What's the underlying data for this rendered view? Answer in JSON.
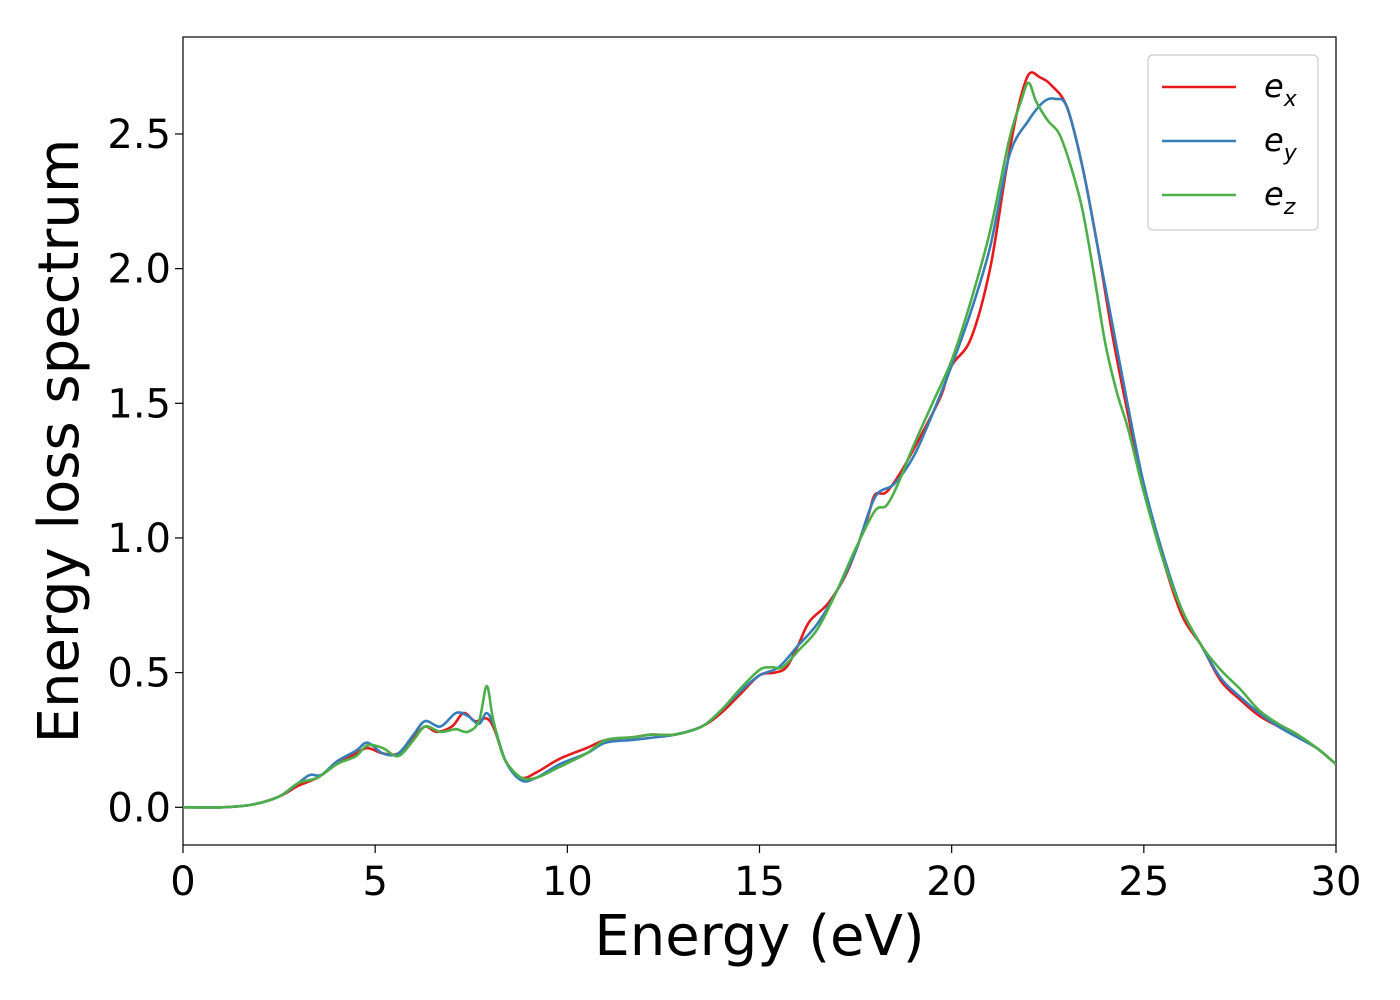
{
  "chart_data": {
    "type": "line",
    "title": "",
    "xlabel": "Energy (eV)",
    "ylabel": "Energy loss spectrum",
    "xlim": [
      0,
      30
    ],
    "ylim": [
      -0.14,
      2.86
    ],
    "xticks": [
      0,
      5,
      10,
      15,
      20,
      25,
      30
    ],
    "xtick_labels": [
      "0",
      "5",
      "10",
      "15",
      "20",
      "25",
      "30"
    ],
    "yticks": [
      0.0,
      0.5,
      1.0,
      1.5,
      2.0,
      2.5
    ],
    "ytick_labels": [
      "0.0",
      "0.5",
      "1.0",
      "1.5",
      "2.0",
      "2.5"
    ],
    "grid": false,
    "legend_position": "top-right",
    "series": [
      {
        "name": "e_x",
        "label_base": "e",
        "label_sub": "x",
        "color": "#e41a1c",
        "x": [
          0,
          1,
          1.8,
          2.5,
          3.0,
          3.5,
          4.0,
          4.5,
          4.8,
          5.2,
          5.6,
          6.0,
          6.3,
          6.6,
          7.0,
          7.3,
          7.6,
          7.9,
          8.1,
          8.4,
          8.8,
          9.2,
          9.8,
          10.5,
          11.0,
          11.7,
          12.2,
          12.8,
          13.5,
          14.0,
          14.5,
          15.0,
          15.4,
          15.7,
          16.0,
          16.3,
          16.8,
          17.3,
          17.8,
          18.0,
          18.3,
          18.7,
          19.2,
          19.7,
          20.0,
          20.5,
          21.0,
          21.4,
          21.7,
          22.0,
          22.3,
          22.6,
          23.0,
          23.4,
          23.8,
          24.2,
          24.6,
          25.0,
          25.5,
          26.0,
          26.5,
          27.0,
          27.5,
          28.0,
          28.5,
          29.0,
          29.5,
          30.0
        ],
        "values": [
          0.0,
          0.0,
          0.01,
          0.04,
          0.08,
          0.11,
          0.16,
          0.2,
          0.22,
          0.2,
          0.2,
          0.26,
          0.3,
          0.28,
          0.3,
          0.35,
          0.32,
          0.33,
          0.29,
          0.17,
          0.11,
          0.13,
          0.18,
          0.22,
          0.25,
          0.26,
          0.27,
          0.27,
          0.3,
          0.35,
          0.42,
          0.49,
          0.5,
          0.52,
          0.6,
          0.69,
          0.76,
          0.88,
          1.07,
          1.16,
          1.17,
          1.25,
          1.38,
          1.52,
          1.64,
          1.74,
          2.0,
          2.35,
          2.58,
          2.72,
          2.71,
          2.68,
          2.6,
          2.38,
          2.08,
          1.74,
          1.45,
          1.18,
          0.92,
          0.71,
          0.6,
          0.47,
          0.4,
          0.34,
          0.3,
          0.26,
          0.22,
          0.16
        ]
      },
      {
        "name": "e_y",
        "label_base": "e",
        "label_sub": "y",
        "color": "#377eb8",
        "x": [
          0,
          1,
          1.8,
          2.5,
          3.0,
          3.3,
          3.6,
          4.0,
          4.5,
          4.8,
          5.2,
          5.6,
          6.0,
          6.3,
          6.7,
          7.1,
          7.4,
          7.7,
          7.9,
          8.1,
          8.4,
          8.8,
          9.2,
          9.8,
          10.5,
          11.0,
          11.7,
          12.3,
          12.8,
          13.5,
          14.0,
          14.5,
          15.0,
          15.5,
          16.0,
          16.5,
          17.0,
          17.5,
          18.0,
          18.5,
          19.0,
          19.5,
          20.0,
          20.5,
          21.0,
          21.5,
          22.0,
          22.4,
          22.7,
          23.0,
          23.4,
          23.8,
          24.2,
          24.6,
          25.0,
          25.5,
          26.0,
          26.5,
          27.0,
          27.5,
          28.0,
          28.5,
          29.0,
          29.5,
          30.0
        ],
        "values": [
          0.0,
          0.0,
          0.01,
          0.04,
          0.09,
          0.12,
          0.12,
          0.17,
          0.21,
          0.24,
          0.2,
          0.2,
          0.27,
          0.32,
          0.3,
          0.35,
          0.34,
          0.31,
          0.35,
          0.3,
          0.17,
          0.1,
          0.11,
          0.16,
          0.2,
          0.24,
          0.25,
          0.26,
          0.27,
          0.3,
          0.36,
          0.43,
          0.49,
          0.52,
          0.6,
          0.68,
          0.8,
          0.95,
          1.15,
          1.2,
          1.3,
          1.46,
          1.64,
          1.84,
          2.08,
          2.42,
          2.55,
          2.62,
          2.63,
          2.6,
          2.38,
          2.08,
          1.78,
          1.48,
          1.2,
          0.94,
          0.73,
          0.6,
          0.48,
          0.41,
          0.35,
          0.3,
          0.26,
          0.22,
          0.16
        ]
      },
      {
        "name": "e_z",
        "label_base": "e",
        "label_sub": "z",
        "color": "#4daf4a",
        "x": [
          0,
          1,
          1.8,
          2.5,
          3.0,
          3.5,
          4.0,
          4.5,
          4.8,
          5.2,
          5.6,
          6.0,
          6.3,
          6.7,
          7.1,
          7.4,
          7.7,
          7.9,
          8.05,
          8.2,
          8.4,
          8.8,
          9.2,
          9.8,
          10.5,
          11.0,
          11.7,
          12.2,
          12.8,
          13.5,
          14.0,
          14.5,
          15.0,
          15.3,
          15.6,
          16.0,
          16.5,
          17.0,
          17.5,
          18.0,
          18.3,
          18.6,
          19.0,
          19.5,
          20.0,
          20.5,
          21.0,
          21.5,
          21.8,
          22.0,
          22.2,
          22.5,
          22.8,
          23.1,
          23.4,
          23.7,
          24.0,
          24.3,
          24.6,
          25.0,
          25.5,
          26.0,
          26.5,
          27.0,
          27.5,
          28.0,
          28.5,
          29.0,
          29.5,
          30.0
        ],
        "values": [
          0.0,
          0.0,
          0.01,
          0.04,
          0.09,
          0.11,
          0.16,
          0.19,
          0.23,
          0.22,
          0.19,
          0.25,
          0.3,
          0.28,
          0.29,
          0.28,
          0.32,
          0.45,
          0.34,
          0.25,
          0.17,
          0.11,
          0.11,
          0.15,
          0.2,
          0.25,
          0.26,
          0.27,
          0.27,
          0.3,
          0.36,
          0.44,
          0.51,
          0.52,
          0.52,
          0.58,
          0.66,
          0.8,
          0.96,
          1.1,
          1.12,
          1.2,
          1.34,
          1.5,
          1.66,
          1.88,
          2.14,
          2.48,
          2.62,
          2.69,
          2.62,
          2.55,
          2.5,
          2.38,
          2.22,
          1.98,
          1.72,
          1.54,
          1.4,
          1.17,
          0.92,
          0.73,
          0.6,
          0.51,
          0.44,
          0.36,
          0.31,
          0.27,
          0.22,
          0.16
        ]
      }
    ]
  }
}
